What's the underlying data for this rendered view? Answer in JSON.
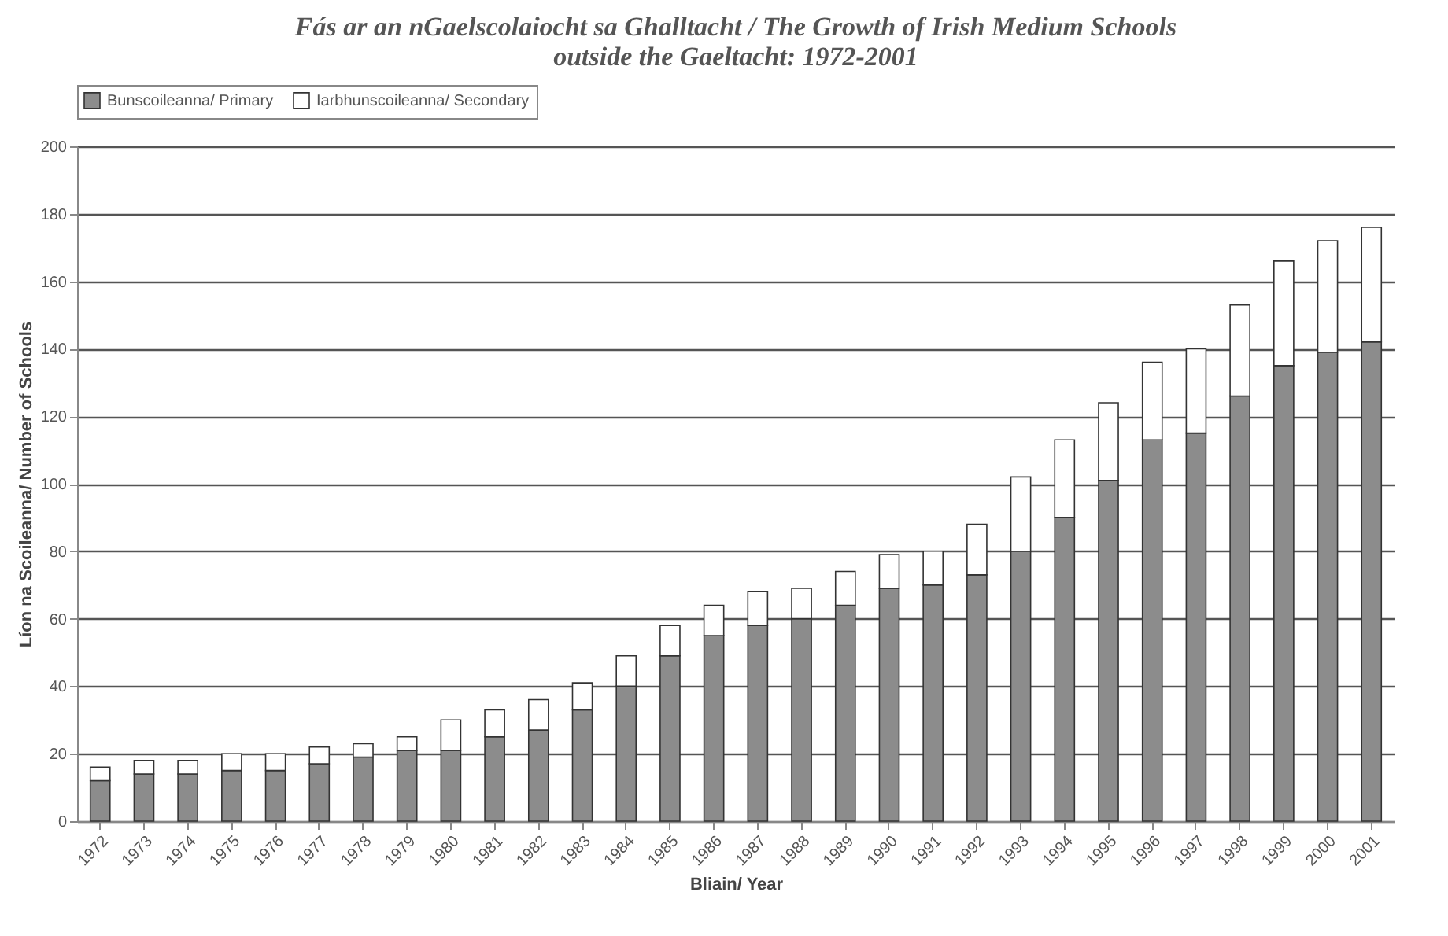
{
  "chart_data": {
    "type": "bar",
    "title": "Fás ar an nGaelscolaiocht sa Ghalltacht / The Growth of Irish Medium Schools\noutside the Gaeltacht: 1972-2001",
    "xlabel": "Bliain/ Year",
    "ylabel": "Líon na Scoileanna/ Number of Schools",
    "categories": [
      "1972",
      "1973",
      "1974",
      "1975",
      "1976",
      "1977",
      "1978",
      "1979",
      "1980",
      "1981",
      "1982",
      "1983",
      "1984",
      "1985",
      "1986",
      "1987",
      "1988",
      "1989",
      "1990",
      "1991",
      "1992",
      "1993",
      "1994",
      "1995",
      "1996",
      "1997",
      "1998",
      "1999",
      "2000",
      "2001"
    ],
    "series": [
      {
        "name": "Bunscoileanna/ Primary",
        "color": "#8c8c8c",
        "values": [
          12,
          14,
          14,
          15,
          15,
          17,
          19,
          21,
          21,
          25,
          27,
          33,
          40,
          49,
          55,
          58,
          60,
          64,
          69,
          70,
          73,
          80,
          90,
          101,
          113,
          115,
          126,
          135,
          139,
          142
        ]
      },
      {
        "name": "Iarbhunscoileanna/ Secondary",
        "color": "#ffffff",
        "values": [
          4,
          4,
          4,
          5,
          5,
          5,
          4,
          4,
          9,
          8,
          9,
          8,
          9,
          9,
          9,
          10,
          9,
          10,
          10,
          10,
          15,
          22,
          23,
          23,
          23,
          25,
          27,
          31,
          33,
          34
        ]
      }
    ],
    "stacked": true,
    "ylim": [
      0,
      200
    ],
    "yticks": [
      0,
      20,
      40,
      60,
      80,
      100,
      120,
      140,
      160,
      180,
      200
    ],
    "grid": "y",
    "legend": "top"
  }
}
